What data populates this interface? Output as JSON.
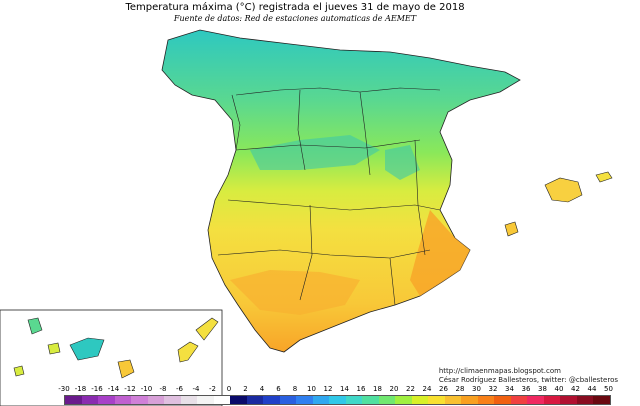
{
  "title": "Temperatura máxima (°C) registrada el jueves 31 de mayo de 2018",
  "subtitle": "Fuente de datos: Red de estaciones automaticas de AEMET",
  "credits": {
    "url": "http://climaenmapas.blogspot.com",
    "author": "César Rodríguez Ballesteros, twitter: @cballesteros"
  },
  "legend": {
    "labels": [
      "-30",
      "-18",
      "-16",
      "-14",
      "-12",
      "-10",
      "-8",
      "-6",
      "-4",
      "-2",
      "0",
      "2",
      "4",
      "6",
      "8",
      "10",
      "12",
      "14",
      "16",
      "18",
      "20",
      "22",
      "24",
      "26",
      "28",
      "30",
      "32",
      "34",
      "36",
      "38",
      "40",
      "42",
      "44",
      "50"
    ],
    "colors": [
      "#6a1a8c",
      "#8a2bb0",
      "#a840c8",
      "#c060d0",
      "#d080d8",
      "#d8a0d8",
      "#e0c0e0",
      "#e8e0e8",
      "#f4f4f4",
      "#ffffff",
      "#0a0a6a",
      "#1a2aa0",
      "#2040c8",
      "#2a60e0",
      "#3080f0",
      "#30a8f0",
      "#30c8e8",
      "#40d8c8",
      "#50e0a0",
      "#70e870",
      "#a0f040",
      "#d8f028",
      "#f8e030",
      "#f8c030",
      "#f8a020",
      "#f88018",
      "#f06010",
      "#f04040",
      "#f02860",
      "#d81840",
      "#b01030",
      "#880c20",
      "#6a0810"
    ]
  },
  "map": {
    "colors": {
      "cool_north": "#2ec8c0",
      "mild_north": "#5ad890",
      "green": "#8ae85a",
      "yellow_green": "#d8ec40",
      "yellow": "#f4e040",
      "orange_yellow": "#f8c838",
      "orange": "#f8a428",
      "sea": "#ffffff",
      "border": "#222222"
    }
  }
}
